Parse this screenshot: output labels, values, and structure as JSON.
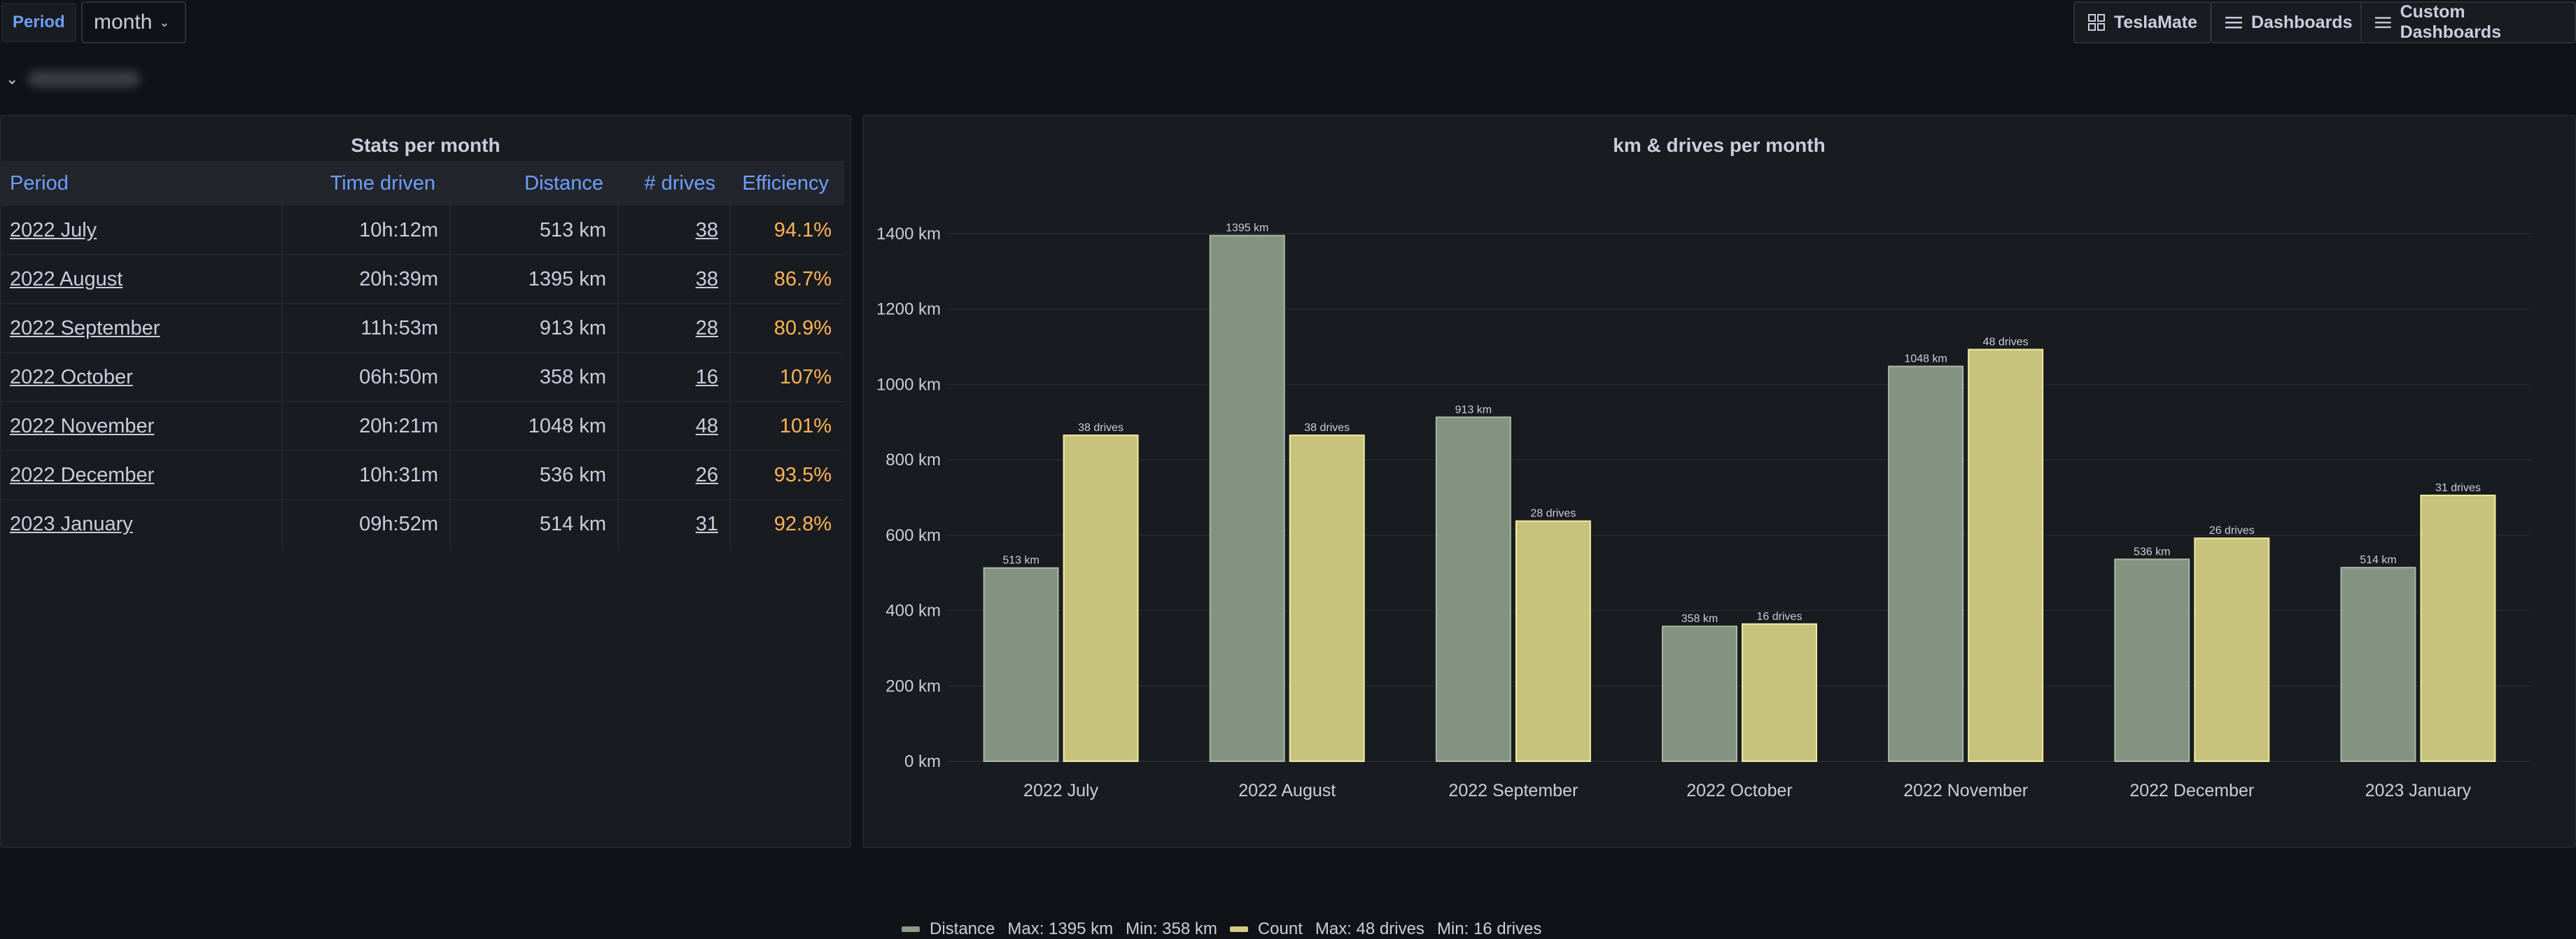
{
  "variables": {
    "period_label": "Period",
    "period_value": "month"
  },
  "nav": {
    "teslamate": "TeslaMate",
    "dashboards": "Dashboards",
    "custom_dashboards": "Custom Dashboards"
  },
  "table_panel": {
    "title": "Stats per month",
    "columns": [
      "Period",
      "Time driven",
      "Distance",
      "# drives",
      "Efficiency"
    ],
    "rows": [
      {
        "period": "2022 July",
        "time": "10h:12m",
        "distance": "513 km",
        "drives": "38",
        "efficiency": "94.1%"
      },
      {
        "period": "2022 August",
        "time": "20h:39m",
        "distance": "1395 km",
        "drives": "38",
        "efficiency": "86.7%"
      },
      {
        "period": "2022 September",
        "time": "11h:53m",
        "distance": "913 km",
        "drives": "28",
        "efficiency": "80.9%"
      },
      {
        "period": "2022 October",
        "time": "06h:50m",
        "distance": "358 km",
        "drives": "16",
        "efficiency": "107%"
      },
      {
        "period": "2022 November",
        "time": "20h:21m",
        "distance": "1048 km",
        "drives": "48",
        "efficiency": "101%"
      },
      {
        "period": "2022 December",
        "time": "10h:31m",
        "distance": "536 km",
        "drives": "26",
        "efficiency": "93.5%"
      },
      {
        "period": "2023 January",
        "time": "09h:52m",
        "distance": "514 km",
        "drives": "31",
        "efficiency": "92.8%"
      }
    ]
  },
  "chart_panel": {
    "title": "km & drives per month",
    "legend": {
      "distance": "Distance",
      "distance_max": "Max: 1395 km",
      "distance_min": "Min: 358 km",
      "count": "Count",
      "count_max": "Max: 48 drives",
      "count_min": "Min: 16 drives"
    }
  },
  "colors": {
    "distance": "#8a9a87",
    "count": "#d1cc82",
    "accent": "#6e9fff",
    "efficiency": "#ffb357"
  },
  "chart_data": {
    "type": "bar",
    "title": "km & drives per month",
    "categories": [
      "2022 July",
      "2022 August",
      "2022 September",
      "2022 October",
      "2022 November",
      "2022 December",
      "2023 January"
    ],
    "series": [
      {
        "name": "Distance",
        "values": [
          513,
          1395,
          913,
          358,
          1048,
          536,
          514
        ],
        "labels": [
          "513 km",
          "1395 km",
          "913 km",
          "358 km",
          "1048 km",
          "536 km",
          "514 km"
        ]
      },
      {
        "name": "Count",
        "values": [
          38,
          38,
          28,
          16,
          48,
          26,
          31
        ],
        "labels": [
          "38 drives",
          "38 drives",
          "28 drives",
          "16 drives",
          "48 drives",
          "26 drives",
          "31 drives"
        ]
      }
    ],
    "yticks": [
      "0 km",
      "200 km",
      "400 km",
      "600 km",
      "800 km",
      "1000 km",
      "1200 km",
      "1400 km"
    ],
    "ylim": [
      0,
      1400
    ],
    "count_scale": [
      0,
      61.5
    ],
    "grid": true,
    "legend_position": "bottom-left"
  }
}
